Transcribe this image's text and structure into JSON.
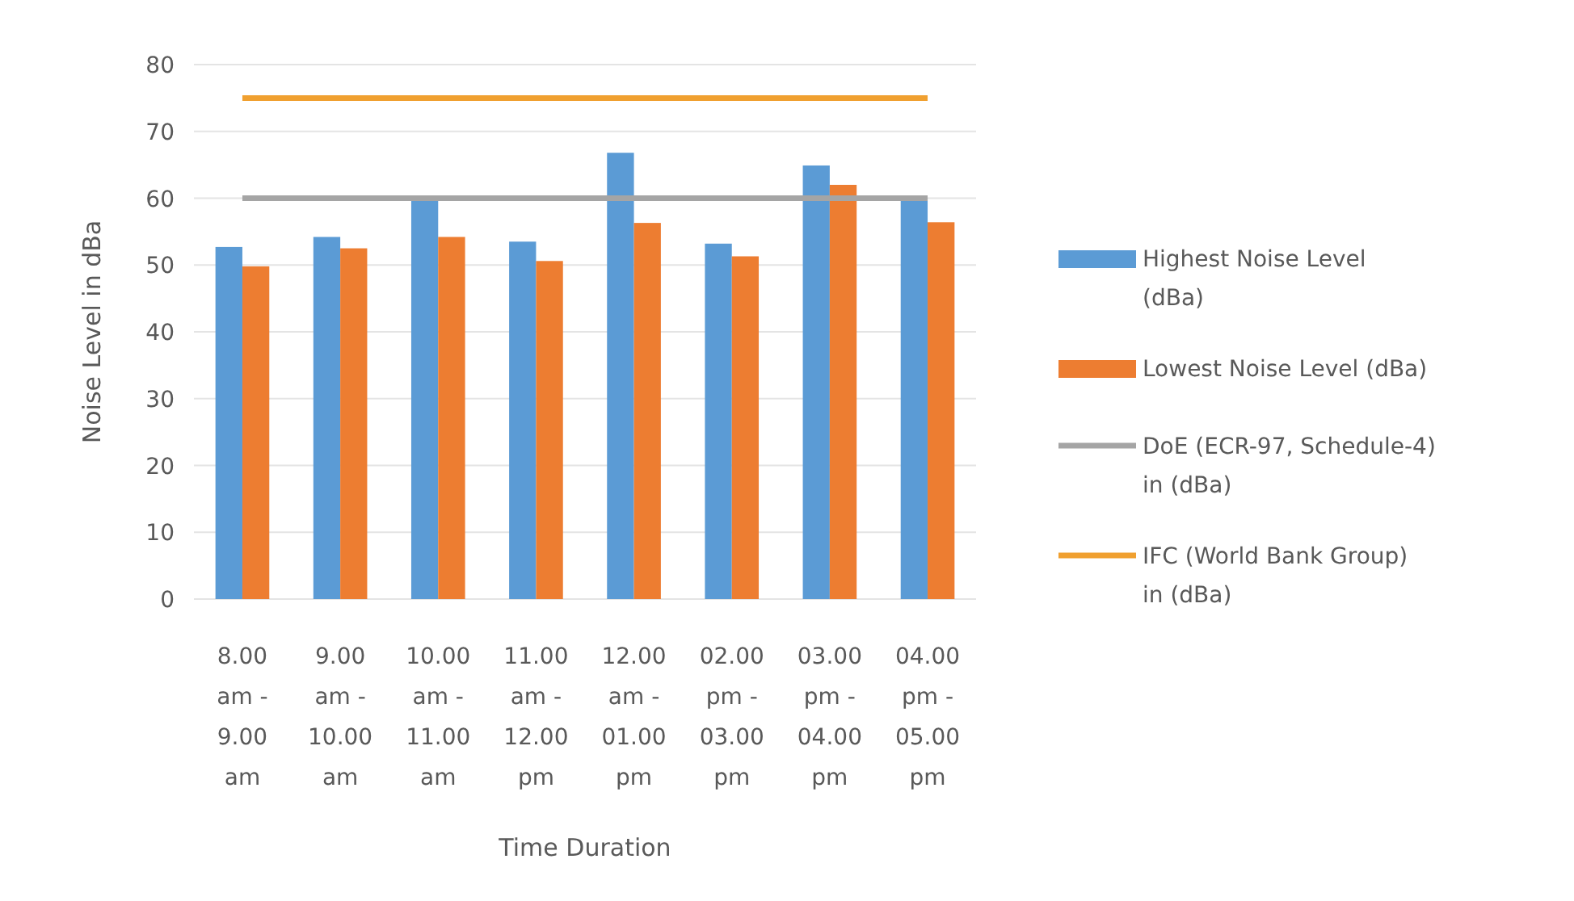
{
  "chart_data": {
    "type": "bar",
    "xlabel": "Time Duration",
    "ylabel": "Noise Level in dBa",
    "categories": [
      "8.00 am - 9.00 am",
      "9.00 am - 10.00 am",
      "10.00 am - 11.00 am",
      "11.00 am - 12.00 pm",
      "12.00 am - 01.00 pm",
      "02.00 pm - 03.00 pm",
      "03.00 pm - 04.00 pm",
      "04.00 pm - 05.00 pm"
    ],
    "series": [
      {
        "name": "Highest Noise Level (dBa)",
        "color": "#5b9bd5",
        "values": [
          52.7,
          54.2,
          59.7,
          53.5,
          66.8,
          53.2,
          64.9,
          59.7
        ]
      },
      {
        "name": "Lowest Noise Level (dBa)",
        "color": "#ed7d31",
        "values": [
          49.8,
          52.5,
          54.2,
          50.6,
          56.3,
          51.3,
          62.0,
          56.4
        ]
      },
      {
        "name": "DoE (ECR-97, Schedule-4) in (dBa)",
        "color": "#a5a5a5",
        "type": "line",
        "values": [
          60,
          60,
          60,
          60,
          60,
          60,
          60,
          60
        ]
      },
      {
        "name": "IFC (World Bank Group) in (dBa)",
        "color": "#f0a030",
        "type": "line",
        "values": [
          75,
          75,
          75,
          75,
          75,
          75,
          75,
          75
        ]
      }
    ],
    "ylim": [
      0,
      80
    ],
    "yticks": [
      0,
      10,
      20,
      30,
      40,
      50,
      60,
      70,
      80
    ],
    "grid": "y",
    "legend": "right"
  }
}
